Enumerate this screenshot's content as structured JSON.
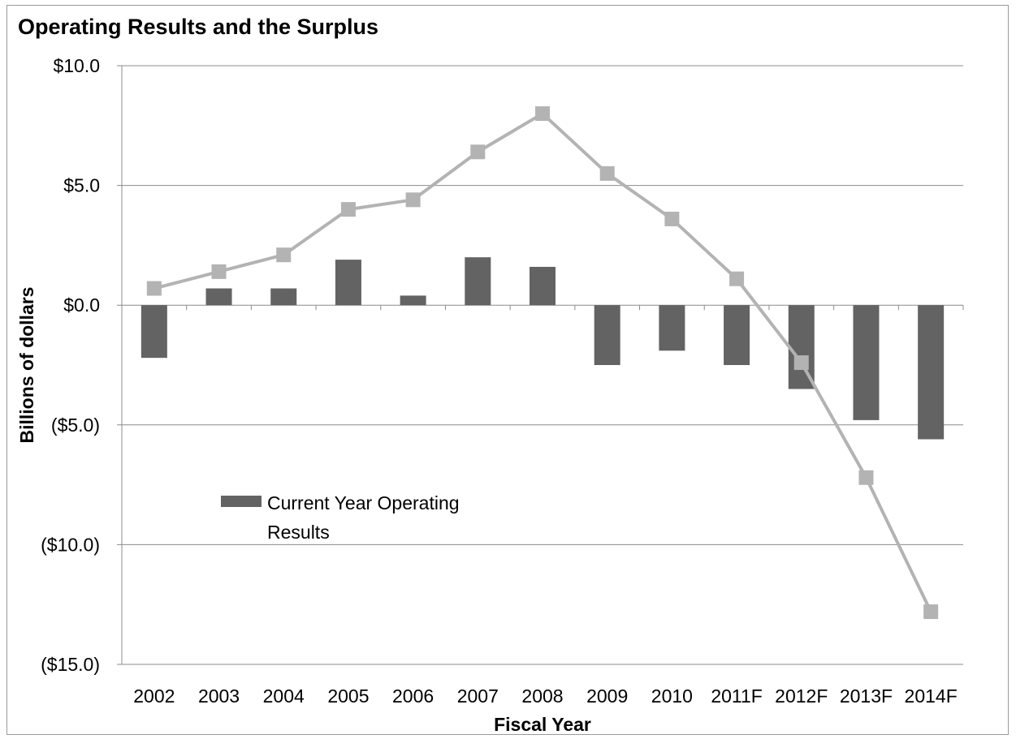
{
  "chart_data": {
    "type": "bar",
    "title": "Operating Results and the Surplus",
    "xlabel": "Fiscal Year",
    "ylabel": "Billions of dollars",
    "categories": [
      "2002",
      "2003",
      "2004",
      "2005",
      "2006",
      "2007",
      "2008",
      "2009",
      "2010",
      "2011F",
      "2012F",
      "2013F",
      "2014F"
    ],
    "ylim": [
      -15,
      10
    ],
    "yticks": [
      10,
      5,
      0,
      -5,
      -10,
      -15
    ],
    "ytick_labels": [
      "$10.0",
      "$5.0",
      "$0.0",
      "($5.0)",
      "($10.0)",
      "($15.0)"
    ],
    "grid": true,
    "legend_placement": "left-middle",
    "series": [
      {
        "name": "Current Year Operating Results",
        "type": "bar",
        "color": "#636363",
        "values": [
          -2.2,
          0.7,
          0.7,
          1.9,
          0.4,
          2.0,
          1.6,
          -2.5,
          -1.9,
          -2.5,
          -3.5,
          -4.8,
          -5.6
        ]
      },
      {
        "type": "line",
        "color": "#b3b3b3",
        "values": [
          0.7,
          1.4,
          2.1,
          4.0,
          4.4,
          6.4,
          8.0,
          5.5,
          3.6,
          1.1,
          -2.4,
          -7.2,
          -12.8
        ]
      }
    ]
  }
}
